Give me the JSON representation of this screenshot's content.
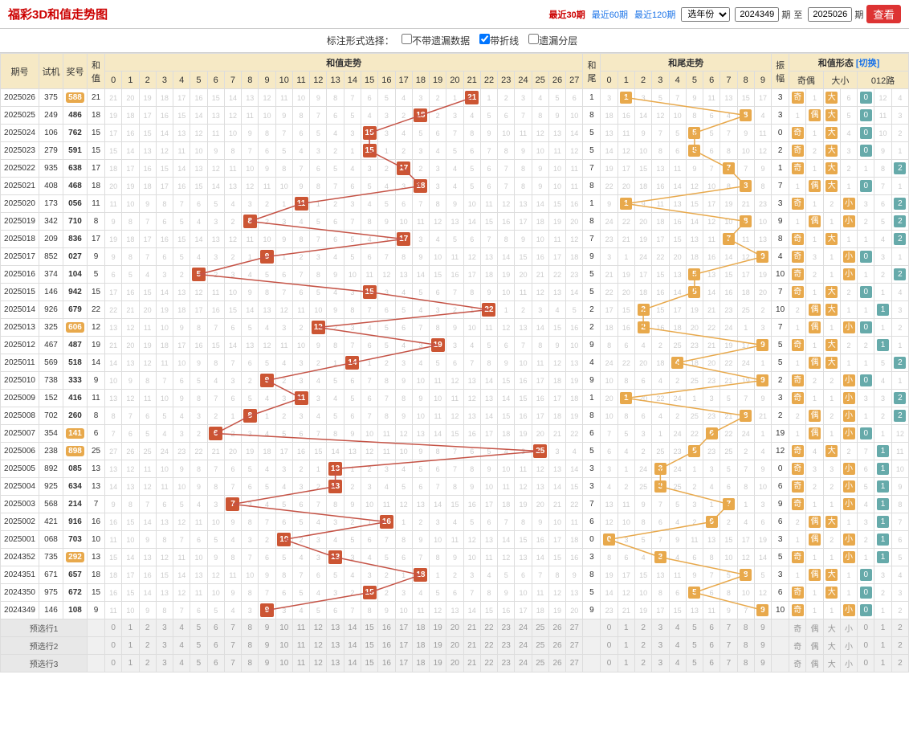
{
  "header": {
    "title": "福彩3D和值走势图",
    "periods": [
      "最近30期",
      "最近60期",
      "最近120期"
    ],
    "active_period": 0,
    "year_select": "选年份",
    "from_issue": "2024349",
    "from_suffix": "期",
    "to_label": "至",
    "to_issue": "2025026",
    "to_suffix": "期",
    "view_btn": "查看"
  },
  "options": {
    "label": "标注形式选择：",
    "opts": [
      {
        "label": "不带遗漏数据",
        "checked": false
      },
      {
        "label": "带折线",
        "checked": true
      },
      {
        "label": "遗漏分层",
        "checked": false
      }
    ]
  },
  "table_headers": {
    "issue": "期号",
    "trial": "试机",
    "win": "奖号",
    "hez": "和值",
    "trend_section": "和值走势",
    "tail": "和尾",
    "tail_section": "和尾走势",
    "amp": "振幅",
    "pattern_section": "和值形态",
    "switch": "[切换]",
    "oddeven": "奇偶",
    "bigsmall": "大小",
    "route": "012路"
  },
  "trend_cols": 28,
  "tail_cols": 10,
  "rows": [
    {
      "issue": "2025026",
      "trial": "375",
      "win": "588",
      "win_hl": true,
      "hez": 21,
      "tail": 1,
      "amp": 3,
      "odd": "奇",
      "oe_miss": 1,
      "big": "大",
      "bs_miss": 6,
      "route": 0,
      "r_miss": [
        0,
        12,
        4
      ]
    },
    {
      "issue": "2025025",
      "trial": "249",
      "win": "486",
      "hez": 18,
      "tail": 8,
      "amp": 3,
      "odd": "偶",
      "oe_miss": 1,
      "big": "大",
      "bs_miss": 5,
      "route": 0,
      "r_miss": [
        0,
        11,
        3
      ]
    },
    {
      "issue": "2025024",
      "trial": "106",
      "win": "762",
      "hez": 15,
      "tail": 5,
      "amp": 0,
      "odd": "奇",
      "oe_miss": 1,
      "big": "大",
      "bs_miss": 4,
      "route": 0,
      "r_miss": [
        0,
        10,
        2
      ]
    },
    {
      "issue": "2025023",
      "trial": "279",
      "win": "591",
      "hez": 15,
      "tail": 5,
      "amp": 2,
      "odd": "奇",
      "oe_miss": 2,
      "big": "大",
      "bs_miss": 3,
      "route": 0,
      "r_miss": [
        0,
        9,
        1
      ]
    },
    {
      "issue": "2025022",
      "trial": "935",
      "win": "638",
      "hez": 17,
      "tail": 7,
      "amp": 1,
      "odd": "奇",
      "oe_miss": 1,
      "big": "大",
      "bs_miss": 2,
      "route": 2,
      "r_miss": [
        1,
        8,
        2
      ]
    },
    {
      "issue": "2025021",
      "trial": "408",
      "win": "468",
      "hez": 18,
      "tail": 8,
      "amp": 7,
      "odd": "偶",
      "oe_miss": 1,
      "big": "大",
      "bs_miss": 1,
      "route": 0,
      "r_miss": [
        0,
        7,
        1
      ]
    },
    {
      "issue": "2025020",
      "trial": "173",
      "win": "056",
      "hez": 11,
      "tail": 1,
      "amp": 3,
      "odd": "奇",
      "oe_miss": 1,
      "big": "小",
      "bs_miss": 2,
      "route": 2,
      "r_miss": [
        3,
        6,
        2
      ]
    },
    {
      "issue": "2025019",
      "trial": "342",
      "win": "710",
      "hez": 8,
      "tail": 8,
      "amp": 9,
      "odd": "偶",
      "oe_miss": 1,
      "big": "小",
      "bs_miss": 1,
      "route": 2,
      "r_miss": [
        2,
        5,
        2
      ]
    },
    {
      "issue": "2025018",
      "trial": "209",
      "win": "836",
      "hez": 17,
      "tail": 7,
      "amp": 8,
      "odd": "奇",
      "oe_miss": 1,
      "big": "大",
      "bs_miss": 1,
      "route": 2,
      "r_miss": [
        1,
        4,
        2
      ]
    },
    {
      "issue": "2025017",
      "trial": "852",
      "win": "027",
      "hez": 9,
      "tail": 9,
      "amp": 4,
      "odd": "奇",
      "oe_miss": 3,
      "big": "小",
      "bs_miss": 1,
      "route": 0,
      "r_miss": [
        0,
        3,
        1
      ]
    },
    {
      "issue": "2025016",
      "trial": "374",
      "win": "104",
      "hez": 5,
      "tail": 5,
      "amp": 10,
      "odd": "奇",
      "oe_miss": 2,
      "big": "小",
      "bs_miss": 1,
      "route": 2,
      "r_miss": [
        1,
        2,
        2
      ]
    },
    {
      "issue": "2025015",
      "trial": "146",
      "win": "942",
      "hez": 15,
      "tail": 5,
      "amp": 7,
      "odd": "奇",
      "oe_miss": 1,
      "big": "大",
      "bs_miss": 2,
      "route": 0,
      "r_miss": [
        0,
        1,
        4
      ]
    },
    {
      "issue": "2025014",
      "trial": "926",
      "win": "679",
      "hez": 22,
      "tail": 2,
      "amp": 10,
      "odd": "偶",
      "oe_miss": 2,
      "big": "大",
      "bs_miss": 1,
      "route": 1,
      "r_miss": [
        1,
        1,
        3
      ]
    },
    {
      "issue": "2025013",
      "trial": "325",
      "win": "606",
      "win_hl": true,
      "hez": 12,
      "tail": 2,
      "amp": 7,
      "odd": "偶",
      "oe_miss": 1,
      "big": "小",
      "bs_miss": 1,
      "route": 0,
      "r_miss": [
        0,
        1,
        2
      ]
    },
    {
      "issue": "2025012",
      "trial": "467",
      "win": "487",
      "hez": 19,
      "tail": 9,
      "amp": 5,
      "odd": "奇",
      "oe_miss": 1,
      "big": "大",
      "bs_miss": 2,
      "route": 1,
      "r_miss": [
        2,
        1,
        1
      ]
    },
    {
      "issue": "2025011",
      "trial": "569",
      "win": "518",
      "hez": 14,
      "tail": 4,
      "amp": 5,
      "odd": "偶",
      "oe_miss": 1,
      "big": "大",
      "bs_miss": 1,
      "route": 2,
      "r_miss": [
        1,
        5,
        2
      ]
    },
    {
      "issue": "2025010",
      "trial": "738",
      "win": "333",
      "hez": 9,
      "tail": 9,
      "amp": 2,
      "odd": "奇",
      "oe_miss": 2,
      "big": "小",
      "bs_miss": 2,
      "route": 0,
      "r_miss": [
        0,
        4,
        1
      ]
    },
    {
      "issue": "2025009",
      "trial": "152",
      "win": "416",
      "hez": 11,
      "tail": 1,
      "amp": 3,
      "odd": "奇",
      "oe_miss": 1,
      "big": "小",
      "bs_miss": 1,
      "route": 2,
      "r_miss": [
        3,
        3,
        2
      ]
    },
    {
      "issue": "2025008",
      "trial": "702",
      "win": "260",
      "hez": 8,
      "tail": 8,
      "amp": 2,
      "odd": "偶",
      "oe_miss": 2,
      "big": "小",
      "bs_miss": 2,
      "route": 2,
      "r_miss": [
        1,
        2,
        2
      ]
    },
    {
      "issue": "2025007",
      "trial": "354",
      "win": "141",
      "win_hl": true,
      "hez": 6,
      "tail": 6,
      "amp": 19,
      "odd": "偶",
      "oe_miss": 1,
      "big": "小",
      "bs_miss": 1,
      "route": 0,
      "r_miss": [
        0,
        1,
        12
      ]
    },
    {
      "issue": "2025006",
      "trial": "238",
      "win": "898",
      "win_hl": true,
      "hez": 25,
      "tail": 5,
      "amp": 12,
      "odd": "奇",
      "oe_miss": 4,
      "big": "大",
      "bs_miss": 2,
      "route": 1,
      "r_miss": [
        7,
        1,
        11
      ]
    },
    {
      "issue": "2025005",
      "trial": "892",
      "win": "085",
      "hez": 13,
      "tail": 3,
      "amp": 0,
      "odd": "奇",
      "oe_miss": 3,
      "big": "小",
      "bs_miss": 3,
      "route": 1,
      "r_miss": [
        6,
        1,
        10
      ]
    },
    {
      "issue": "2025004",
      "trial": "925",
      "win": "634",
      "hez": 13,
      "tail": 3,
      "amp": 6,
      "odd": "奇",
      "oe_miss": 2,
      "big": "小",
      "bs_miss": 2,
      "route": 1,
      "r_miss": [
        5,
        1,
        9
      ]
    },
    {
      "issue": "2025003",
      "trial": "568",
      "win": "214",
      "hez": 7,
      "tail": 7,
      "amp": 9,
      "odd": "奇",
      "oe_miss": 1,
      "big": "小",
      "bs_miss": 1,
      "route": 1,
      "r_miss": [
        4,
        1,
        8
      ]
    },
    {
      "issue": "2025002",
      "trial": "421",
      "win": "916",
      "hez": 16,
      "tail": 6,
      "amp": 6,
      "odd": "偶",
      "oe_miss": 2,
      "big": "大",
      "bs_miss": 1,
      "route": 1,
      "r_miss": [
        3,
        1,
        7
      ]
    },
    {
      "issue": "2025001",
      "trial": "068",
      "win": "703",
      "hez": 10,
      "tail": 0,
      "amp": 3,
      "odd": "偶",
      "oe_miss": 1,
      "big": "小",
      "bs_miss": 2,
      "route": 1,
      "r_miss": [
        2,
        1,
        6
      ]
    },
    {
      "issue": "2024352",
      "trial": "735",
      "win": "292",
      "win_hl": true,
      "hez": 13,
      "tail": 3,
      "amp": 5,
      "odd": "奇",
      "oe_miss": 1,
      "big": "小",
      "bs_miss": 1,
      "route": 1,
      "r_miss": [
        1,
        1,
        5
      ]
    },
    {
      "issue": "2024351",
      "trial": "671",
      "win": "657",
      "hez": 18,
      "tail": 8,
      "amp": 3,
      "odd": "偶",
      "oe_miss": 1,
      "big": "大",
      "bs_miss": 1,
      "route": 0,
      "r_miss": [
        0,
        3,
        4
      ]
    },
    {
      "issue": "2024350",
      "trial": "975",
      "win": "672",
      "hez": 15,
      "tail": 5,
      "amp": 6,
      "odd": "奇",
      "oe_miss": 1,
      "big": "大",
      "bs_miss": 1,
      "route": 0,
      "r_miss": [
        0,
        2,
        3
      ]
    },
    {
      "issue": "2024349",
      "trial": "146",
      "win": "108",
      "hez": 9,
      "tail": 9,
      "amp": 10,
      "odd": "奇",
      "oe_miss": 1,
      "big": "小",
      "bs_miss": 1,
      "route": 0,
      "r_miss": [
        0,
        1,
        2
      ]
    }
  ],
  "pred_rows": [
    "预选行1",
    "预选行2",
    "预选行3"
  ],
  "colors": {
    "header_bg": "#f6e9c5",
    "hit_red": "#c55346",
    "hit_orange": "#e8a94c",
    "teal": "#66aaaa",
    "miss": "#cccccc",
    "line_red": "#c55346",
    "line_orange": "#e8a94c"
  }
}
